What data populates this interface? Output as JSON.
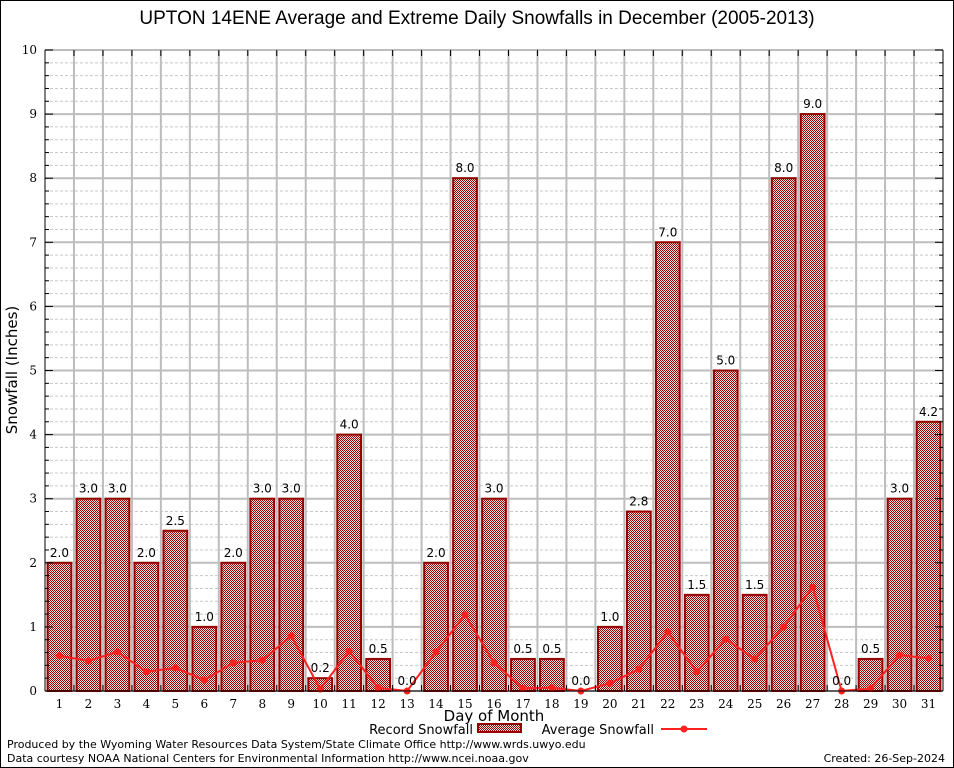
{
  "chart_data": {
    "type": "bar",
    "title": "UPTON 14ENE Average and Extreme Daily Snowfalls in December (2005-2013)",
    "xlabel": "Day of Month",
    "ylabel": "Snowfall (Inches)",
    "ylim": [
      0,
      10
    ],
    "yticks": [
      "0",
      "1",
      "2",
      "3",
      "4",
      "5",
      "6",
      "7",
      "8",
      "9",
      "10"
    ],
    "grid": true,
    "legend_position": "bottom-center",
    "categories": [
      "1",
      "2",
      "3",
      "4",
      "5",
      "6",
      "7",
      "8",
      "9",
      "10",
      "11",
      "12",
      "13",
      "14",
      "15",
      "16",
      "17",
      "18",
      "19",
      "20",
      "21",
      "22",
      "23",
      "24",
      "25",
      "26",
      "27",
      "28",
      "29",
      "30",
      "31"
    ],
    "series": [
      {
        "name": "Record Snowfall",
        "type": "bar",
        "color": "#990000",
        "values": [
          2.0,
          3.0,
          3.0,
          2.0,
          2.5,
          1.0,
          2.0,
          3.0,
          3.0,
          0.2,
          4.0,
          0.5,
          0.0,
          2.0,
          8.0,
          3.0,
          0.5,
          0.5,
          0.0,
          1.0,
          2.8,
          7.0,
          1.5,
          5.0,
          1.5,
          8.0,
          9.0,
          0.0,
          0.5,
          3.0,
          4.2
        ],
        "labels": [
          "2.0",
          "3.0",
          "3.0",
          "2.0",
          "2.5",
          "1.0",
          "2.0",
          "3.0",
          "3.0",
          "0.2",
          "4.0",
          "0.5",
          "0.0",
          "2.0",
          "8.0",
          "3.0",
          "0.5",
          "0.5",
          "0.0",
          "1.0",
          "2.8",
          "7.0",
          "1.5",
          "5.0",
          "1.5",
          "8.0",
          "9.0",
          "0.0",
          "0.5",
          "3.0",
          "4.2"
        ]
      },
      {
        "name": "Average Snowfall",
        "type": "line",
        "color": "#ff2020",
        "values": [
          0.55,
          0.47,
          0.61,
          0.3,
          0.36,
          0.17,
          0.44,
          0.48,
          0.86,
          0.03,
          0.62,
          0.05,
          0.0,
          0.61,
          1.19,
          0.44,
          0.04,
          0.05,
          0.0,
          0.12,
          0.34,
          0.92,
          0.3,
          0.81,
          0.5,
          1.0,
          1.62,
          0.0,
          0.04,
          0.56,
          0.51
        ]
      }
    ]
  },
  "footer": {
    "produced": "Produced by the Wyoming Water Resources Data System/State Climate Office http://www.wrds.uwyo.edu",
    "courtesy": "Data courtesy NOAA National Centers for Environmental Information http://www.ncei.noaa.gov",
    "created": "Created:  26-Sep-2024"
  }
}
